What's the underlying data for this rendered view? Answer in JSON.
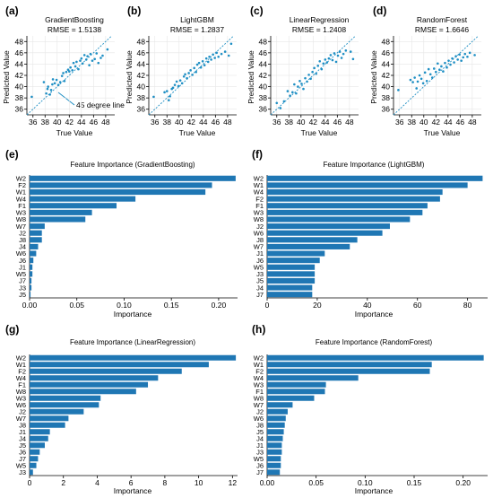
{
  "colors": {
    "bar": "#1f77b4",
    "point": "#1f8fc4",
    "ref_line": "#1f8fc4",
    "axis": "#000000"
  },
  "annotation": "45 degree line",
  "scatter_panels": [
    {
      "letter": "(a)",
      "title": "GradientBoosting",
      "rmse": "RMSE = 1.5138",
      "xlabel": "True Value",
      "ylabel": "Predicted Value"
    },
    {
      "letter": "(b)",
      "title": "LightGBM",
      "rmse": "RMSE = 1.2837",
      "xlabel": "True Value",
      "ylabel": "Predicted Value"
    },
    {
      "letter": "(c)",
      "title": "LinearRegression",
      "rmse": "RMSE = 1.2408",
      "xlabel": "True Value",
      "ylabel": "Predicted Value"
    },
    {
      "letter": "(d)",
      "title": "RandomForest",
      "rmse": "RMSE = 1.6646",
      "xlabel": "True Value",
      "ylabel": "Predicted Value"
    }
  ],
  "bar_panels": [
    {
      "letter": "(e)",
      "title": "Feature Importance (GradientBoosting)",
      "xlabel": "Importance"
    },
    {
      "letter": "(f)",
      "title": "Feature Importance (LightGBM)",
      "xlabel": "Importance"
    },
    {
      "letter": "(g)",
      "title": "Feature Importance (LinearRegression)",
      "xlabel": "Importance"
    },
    {
      "letter": "(h)",
      "title": "Feature Importance (RandomForest)",
      "xlabel": "Importance"
    }
  ],
  "chart_data": [
    {
      "type": "scatter",
      "title": "GradientBoosting",
      "subtitle": "RMSE = 1.5138",
      "xlabel": "True Value",
      "ylabel": "Predicted Value",
      "xlim": [
        35,
        49.5
      ],
      "ylim": [
        35,
        49
      ],
      "xticks": [
        36,
        38,
        40,
        42,
        44,
        46,
        48
      ],
      "yticks": [
        36,
        38,
        40,
        42,
        44,
        46,
        48
      ],
      "reference_line": "y = x",
      "points": [
        [
          35.8,
          38.2
        ],
        [
          37.8,
          40.8
        ],
        [
          38.2,
          38.8
        ],
        [
          38.4,
          39.6
        ],
        [
          38.5,
          40.0
        ],
        [
          38.8,
          38.6
        ],
        [
          39.0,
          39.4
        ],
        [
          39.2,
          40.4
        ],
        [
          39.3,
          41.3
        ],
        [
          39.6,
          40.6
        ],
        [
          39.9,
          41.2
        ],
        [
          40.2,
          40.3
        ],
        [
          40.5,
          40.8
        ],
        [
          40.8,
          41.9
        ],
        [
          41.0,
          42.4
        ],
        [
          41.2,
          41.0
        ],
        [
          41.5,
          42.6
        ],
        [
          41.8,
          43.0
        ],
        [
          42.0,
          42.7
        ],
        [
          42.2,
          43.4
        ],
        [
          42.5,
          42.9
        ],
        [
          42.7,
          44.2
        ],
        [
          43.0,
          43.6
        ],
        [
          43.2,
          44.4
        ],
        [
          43.5,
          43.1
        ],
        [
          43.8,
          44.6
        ],
        [
          44.0,
          45.0
        ],
        [
          44.2,
          44.1
        ],
        [
          44.5,
          45.6
        ],
        [
          44.8,
          44.8
        ],
        [
          45.0,
          45.4
        ],
        [
          45.3,
          43.8
        ],
        [
          45.5,
          45.8
        ],
        [
          45.8,
          44.6
        ],
        [
          46.2,
          44.9
        ],
        [
          46.5,
          45.9
        ],
        [
          46.8,
          44.2
        ],
        [
          47.2,
          45.1
        ],
        [
          47.5,
          45.5
        ],
        [
          48.3,
          46.6
        ]
      ]
    },
    {
      "type": "scatter",
      "title": "LightGBM",
      "subtitle": "RMSE = 1.2837",
      "xlabel": "True Value",
      "ylabel": "Predicted Value",
      "xlim": [
        35,
        49.5
      ],
      "ylim": [
        35,
        49
      ],
      "xticks": [
        36,
        38,
        40,
        42,
        44,
        46,
        48
      ],
      "yticks": [
        36,
        38,
        40,
        42,
        44,
        46,
        48
      ],
      "reference_line": "y = x",
      "points": [
        [
          35.8,
          38.2
        ],
        [
          37.6,
          39.0
        ],
        [
          38.0,
          39.2
        ],
        [
          38.3,
          37.6
        ],
        [
          38.5,
          38.3
        ],
        [
          38.8,
          39.6
        ],
        [
          39.0,
          39.8
        ],
        [
          39.3,
          40.3
        ],
        [
          39.6,
          40.9
        ],
        [
          39.9,
          40.1
        ],
        [
          40.2,
          41.1
        ],
        [
          40.5,
          40.6
        ],
        [
          40.8,
          41.8
        ],
        [
          41.0,
          42.2
        ],
        [
          41.3,
          41.5
        ],
        [
          41.6,
          42.4
        ],
        [
          41.9,
          42.9
        ],
        [
          42.2,
          42.1
        ],
        [
          42.5,
          43.3
        ],
        [
          42.8,
          42.6
        ],
        [
          43.0,
          43.9
        ],
        [
          43.3,
          44.2
        ],
        [
          43.6,
          43.4
        ],
        [
          43.9,
          44.5
        ],
        [
          44.2,
          43.8
        ],
        [
          44.5,
          45.0
        ],
        [
          44.8,
          44.4
        ],
        [
          45.0,
          45.3
        ],
        [
          45.3,
          44.8
        ],
        [
          45.6,
          45.7
        ],
        [
          45.9,
          45.1
        ],
        [
          46.2,
          46.0
        ],
        [
          46.5,
          45.3
        ],
        [
          47.0,
          45.8
        ],
        [
          47.6,
          46.2
        ],
        [
          48.2,
          45.5
        ],
        [
          48.6,
          47.6
        ]
      ]
    },
    {
      "type": "scatter",
      "title": "LinearRegression",
      "subtitle": "RMSE = 1.2408",
      "xlabel": "True Value",
      "ylabel": "Predicted Value",
      "xlim": [
        35,
        49.5
      ],
      "ylim": [
        35,
        49
      ],
      "xticks": [
        36,
        38,
        40,
        42,
        44,
        46,
        48
      ],
      "yticks": [
        36,
        38,
        40,
        42,
        44,
        46,
        48
      ],
      "reference_line": "y = x",
      "points": [
        [
          36.0,
          37.1
        ],
        [
          36.6,
          36.2
        ],
        [
          37.2,
          37.4
        ],
        [
          37.8,
          39.2
        ],
        [
          38.2,
          38.4
        ],
        [
          38.6,
          39.0
        ],
        [
          38.9,
          40.4
        ],
        [
          39.2,
          38.8
        ],
        [
          39.5,
          40.0
        ],
        [
          39.8,
          41.0
        ],
        [
          40.1,
          40.5
        ],
        [
          40.4,
          39.6
        ],
        [
          40.7,
          41.5
        ],
        [
          41.0,
          40.9
        ],
        [
          41.3,
          42.1
        ],
        [
          41.6,
          41.4
        ],
        [
          41.9,
          42.6
        ],
        [
          42.2,
          43.3
        ],
        [
          42.5,
          42.3
        ],
        [
          42.8,
          43.7
        ],
        [
          43.1,
          44.5
        ],
        [
          43.4,
          43.1
        ],
        [
          43.7,
          44.1
        ],
        [
          44.0,
          44.8
        ],
        [
          44.3,
          44.3
        ],
        [
          44.6,
          45.0
        ],
        [
          44.9,
          45.6
        ],
        [
          45.2,
          44.7
        ],
        [
          45.5,
          45.9
        ],
        [
          45.8,
          44.4
        ],
        [
          46.1,
          45.5
        ],
        [
          46.4,
          46.2
        ],
        [
          46.7,
          45.1
        ],
        [
          47.0,
          45.8
        ],
        [
          47.4,
          46.4
        ],
        [
          48.2,
          46.2
        ],
        [
          48.6,
          44.9
        ]
      ]
    },
    {
      "type": "scatter",
      "title": "RandomForest",
      "subtitle": "RMSE = 1.6646",
      "xlabel": "True Value",
      "ylabel": "Predicted Value",
      "xlim": [
        35,
        49.5
      ],
      "ylim": [
        35,
        49
      ],
      "xticks": [
        36,
        38,
        40,
        42,
        44,
        46,
        48
      ],
      "yticks": [
        36,
        38,
        40,
        42,
        44,
        46,
        48
      ],
      "reference_line": "y = x",
      "points": [
        [
          35.8,
          39.4
        ],
        [
          37.8,
          41.2
        ],
        [
          38.2,
          40.8
        ],
        [
          38.5,
          41.6
        ],
        [
          38.8,
          39.7
        ],
        [
          39.0,
          40.9
        ],
        [
          39.3,
          42.0
        ],
        [
          39.6,
          41.4
        ],
        [
          39.9,
          40.6
        ],
        [
          40.2,
          42.5
        ],
        [
          40.5,
          41.0
        ],
        [
          40.8,
          43.1
        ],
        [
          41.1,
          42.2
        ],
        [
          41.4,
          41.6
        ],
        [
          41.7,
          43.2
        ],
        [
          42.0,
          42.6
        ],
        [
          42.3,
          44.1
        ],
        [
          42.6,
          43.0
        ],
        [
          42.9,
          43.6
        ],
        [
          43.2,
          42.7
        ],
        [
          43.5,
          44.2
        ],
        [
          43.8,
          43.4
        ],
        [
          44.1,
          44.6
        ],
        [
          44.4,
          43.9
        ],
        [
          44.7,
          45.0
        ],
        [
          45.0,
          44.3
        ],
        [
          45.3,
          45.4
        ],
        [
          45.6,
          44.8
        ],
        [
          45.9,
          45.7
        ],
        [
          46.2,
          44.6
        ],
        [
          46.5,
          45.2
        ],
        [
          46.8,
          45.8
        ],
        [
          47.2,
          45.3
        ],
        [
          47.6,
          46.0
        ],
        [
          48.4,
          45.6
        ]
      ]
    },
    {
      "type": "bar",
      "orientation": "horizontal",
      "title": "Feature Importance (GradientBoosting)",
      "xlabel": "Importance",
      "xlim": [
        0,
        0.22
      ],
      "xticks": [
        0.0,
        0.05,
        0.1,
        0.15,
        0.2
      ],
      "tick_labels": [
        "0.00",
        "0.05",
        "0.10",
        "0.15",
        "0.20"
      ],
      "categories": [
        "W2",
        "F2",
        "W1",
        "W4",
        "F1",
        "W3",
        "W8",
        "W7",
        "J2",
        "J8",
        "J4",
        "W6",
        "J6",
        "J1",
        "W5",
        "J7",
        "J3",
        "J5"
      ],
      "values": [
        0.218,
        0.193,
        0.186,
        0.112,
        0.092,
        0.066,
        0.059,
        0.016,
        0.013,
        0.013,
        0.009,
        0.007,
        0.004,
        0.003,
        0.003,
        0.002,
        0.002,
        0.001
      ]
    },
    {
      "type": "bar",
      "orientation": "horizontal",
      "title": "Feature Importance (LightGBM)",
      "xlabel": "Importance",
      "xlim": [
        0,
        88
      ],
      "xticks": [
        0,
        20,
        40,
        60,
        80
      ],
      "tick_labels": [
        "0",
        "20",
        "40",
        "60",
        "80"
      ],
      "categories": [
        "W2",
        "W1",
        "W4",
        "F2",
        "F1",
        "W3",
        "W8",
        "J2",
        "W6",
        "J8",
        "W7",
        "J1",
        "J6",
        "W5",
        "J3",
        "J5",
        "J4",
        "J7"
      ],
      "values": [
        86,
        80,
        70,
        69,
        64,
        62,
        57,
        49,
        46,
        36,
        33,
        23,
        21,
        19,
        19,
        19,
        18,
        18
      ]
    },
    {
      "type": "bar",
      "orientation": "horizontal",
      "title": "Feature Importance (LinearRegression)",
      "xlabel": "Importance",
      "xlim": [
        0,
        12.3
      ],
      "xticks": [
        0,
        2,
        4,
        6,
        8,
        10,
        12
      ],
      "tick_labels": [
        "0",
        "2",
        "4",
        "6",
        "8",
        "10",
        "12"
      ],
      "categories": [
        "W2",
        "W1",
        "F2",
        "W4",
        "F1",
        "W8",
        "W3",
        "W6",
        "J2",
        "W7",
        "J8",
        "J1",
        "J4",
        "J5",
        "J6",
        "J7",
        "W5",
        "J3"
      ],
      "values": [
        12.2,
        10.6,
        9.0,
        7.6,
        7.0,
        6.3,
        4.2,
        4.1,
        3.2,
        2.3,
        2.1,
        1.2,
        1.1,
        0.9,
        0.6,
        0.5,
        0.4,
        0.2
      ]
    },
    {
      "type": "bar",
      "orientation": "horizontal",
      "title": "Feature Importance (RandomForest)",
      "xlabel": "Importance",
      "xlim": [
        0,
        0.225
      ],
      "xticks": [
        0.0,
        0.05,
        0.1,
        0.15,
        0.2
      ],
      "tick_labels": [
        "0.00",
        "0.05",
        "0.10",
        "0.15",
        "0.20"
      ],
      "categories": [
        "W2",
        "W1",
        "F2",
        "W4",
        "W3",
        "F1",
        "W8",
        "W7",
        "J2",
        "W6",
        "J8",
        "J5",
        "J4",
        "J1",
        "J3",
        "W5",
        "J6",
        "J7"
      ],
      "values": [
        0.221,
        0.168,
        0.166,
        0.093,
        0.06,
        0.059,
        0.048,
        0.026,
        0.021,
        0.019,
        0.018,
        0.017,
        0.016,
        0.015,
        0.015,
        0.014,
        0.014,
        0.013
      ]
    }
  ]
}
